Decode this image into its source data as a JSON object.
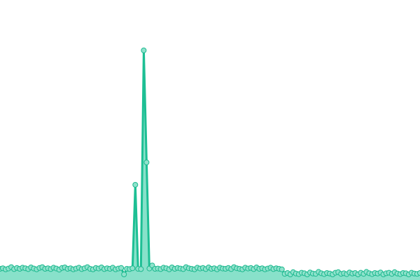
{
  "chart_data": {
    "type": "area",
    "title": "",
    "xlabel": "",
    "ylabel": "",
    "ylim": [
      0,
      100
    ],
    "grid": false,
    "axes_visible": false,
    "markers": true,
    "colors": {
      "line": "#1dbf94",
      "fill": "#88e1ca",
      "marker_fill": "#8fe2cc",
      "marker_stroke": "#1db98f"
    },
    "series": [
      {
        "values": [
          4.0,
          4.2,
          3.8,
          4.1,
          4.6,
          3.9,
          4.3,
          4.0,
          4.4,
          4.2,
          3.9,
          4.5,
          4.1,
          3.8,
          4.3,
          4.6,
          4.0,
          4.2,
          3.9,
          4.4,
          4.1,
          3.7,
          4.3,
          4.5,
          4.0,
          4.2,
          3.8,
          4.1,
          4.4,
          3.9,
          4.2,
          4.6,
          4.0,
          3.8,
          4.3,
          4.1,
          4.5,
          3.9,
          4.2,
          4.0,
          4.4,
          3.8,
          4.1,
          4.3,
          2.0,
          4.0,
          3.9,
          4.2,
          34,
          4.0,
          3.9,
          82,
          42,
          4.1,
          5.2,
          4.0,
          4.1,
          3.9,
          4.4,
          4.2,
          3.8,
          4.5,
          4.0,
          4.3,
          4.1,
          3.9,
          4.6,
          4.2,
          4.0,
          3.8,
          4.4,
          4.1,
          4.3,
          3.9,
          4.5,
          4.0,
          4.2,
          3.8,
          4.4,
          4.1,
          4.0,
          4.3,
          3.9,
          4.6,
          4.2,
          4.0,
          3.8,
          4.4,
          4.1,
          4.3,
          3.9,
          4.5,
          4.0,
          4.2,
          3.8,
          4.1,
          4.4,
          3.9,
          4.2,
          4.0,
          3.8,
          2.2,
          2.5,
          2.0,
          2.8,
          2.3,
          2.1,
          2.6,
          2.4,
          2.0,
          2.7,
          2.3,
          2.2,
          2.9,
          2.4,
          2.1,
          2.5,
          2.3,
          2.0,
          2.6,
          2.8,
          2.2,
          2.4,
          2.1,
          2.7,
          2.3,
          2.5,
          2.0,
          2.6,
          2.2,
          2.9,
          2.4,
          2.1,
          2.5,
          2.3,
          2.7,
          2.0,
          2.4,
          2.6,
          2.2,
          2.8,
          2.3,
          2.1,
          2.5,
          2.4,
          2.0,
          2.6,
          2.3,
          2.2,
          2.5
        ]
      }
    ]
  }
}
